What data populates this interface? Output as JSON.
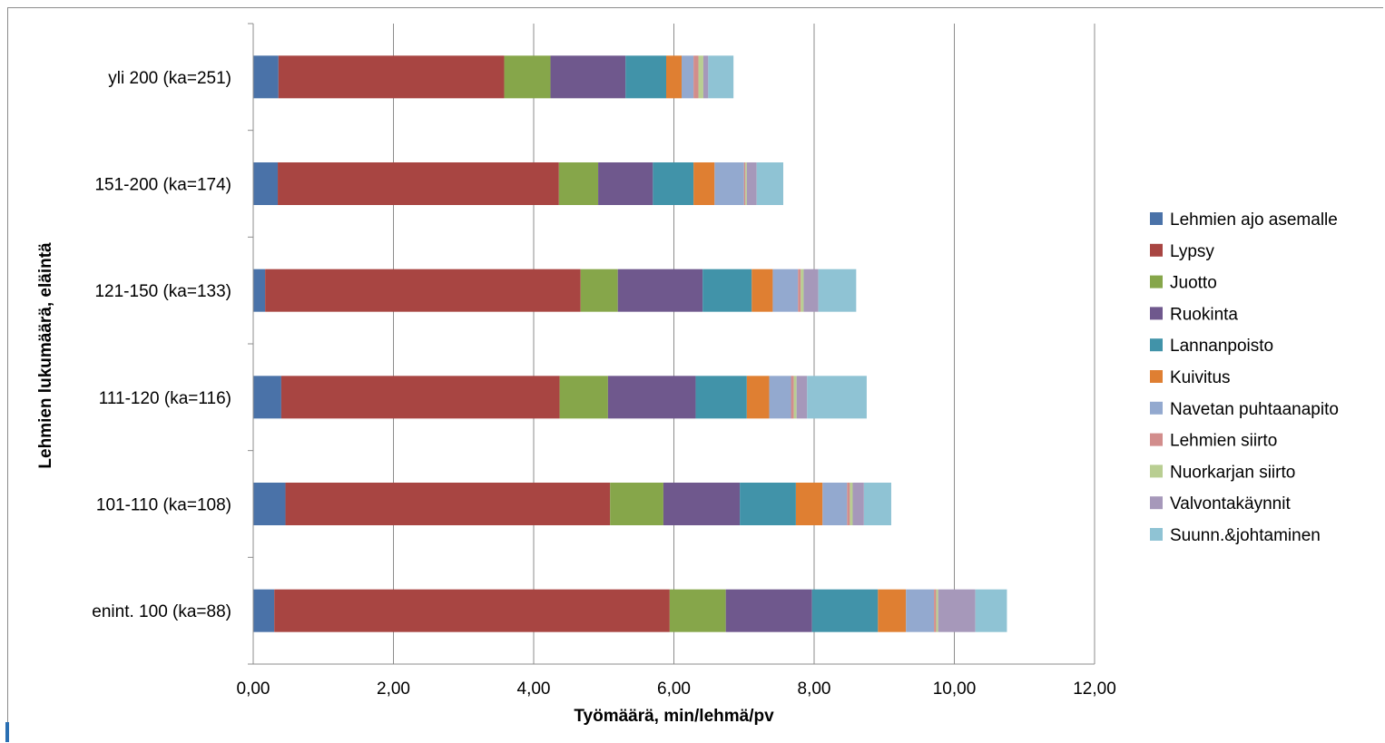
{
  "chart_data": {
    "type": "bar",
    "orientation": "horizontal",
    "stacked": true,
    "categories": [
      "yli 200 (ka=251)",
      "151-200 (ka=174)",
      "121-150 (ka=133)",
      "111-120 (ka=116)",
      "101-110 (ka=108)",
      "enint. 100 (ka=88)"
    ],
    "xlabel": "Työmäärä, min/lehmä/pv",
    "ylabel": "Lehmien lukumäärä, eläintä",
    "xlim": [
      0,
      12
    ],
    "xticks": [
      0,
      2,
      4,
      6,
      8,
      10,
      12
    ],
    "xtick_labels": [
      "0,00",
      "2,00",
      "4,00",
      "6,00",
      "8,00",
      "10,00",
      "12,00"
    ],
    "grid": "vertical",
    "legend_position": "right",
    "series": [
      {
        "name": "Lehmien ajo asemalle",
        "color": "#4a72a8",
        "values": [
          0.36,
          0.35,
          0.17,
          0.4,
          0.46,
          0.3
        ]
      },
      {
        "name": "Lypsy",
        "color": "#a84542",
        "values": [
          3.22,
          4.01,
          4.5,
          3.97,
          4.63,
          5.64
        ]
      },
      {
        "name": "Juotto",
        "color": "#86a64a",
        "values": [
          0.66,
          0.56,
          0.53,
          0.69,
          0.76,
          0.8
        ]
      },
      {
        "name": "Ruokinta",
        "color": "#6f588d",
        "values": [
          1.07,
          0.78,
          1.21,
          1.25,
          1.09,
          1.23
        ]
      },
      {
        "name": "Lannanpoisto",
        "color": "#4193a9",
        "values": [
          0.58,
          0.58,
          0.7,
          0.73,
          0.8,
          0.94
        ]
      },
      {
        "name": "Kuivitus",
        "color": "#df7f32",
        "values": [
          0.22,
          0.3,
          0.3,
          0.32,
          0.38,
          0.4
        ]
      },
      {
        "name": "Navetan puhtaanapito",
        "color": "#93a9cf",
        "values": [
          0.17,
          0.42,
          0.36,
          0.31,
          0.35,
          0.4
        ]
      },
      {
        "name": "Lehmien siirto",
        "color": "#d28d8c",
        "values": [
          0.07,
          0.02,
          0.04,
          0.04,
          0.04,
          0.03
        ]
      },
      {
        "name": "Nuorkarjan siirto",
        "color": "#b9ce92",
        "values": [
          0.07,
          0.02,
          0.04,
          0.04,
          0.04,
          0.03
        ]
      },
      {
        "name": "Valvontakäynnit",
        "color": "#a698ba",
        "values": [
          0.07,
          0.14,
          0.21,
          0.15,
          0.16,
          0.53
        ]
      },
      {
        "name": "Suunn.&johtaminen",
        "color": "#8fc3d4",
        "values": [
          0.36,
          0.38,
          0.54,
          0.85,
          0.39,
          0.45
        ]
      }
    ]
  }
}
